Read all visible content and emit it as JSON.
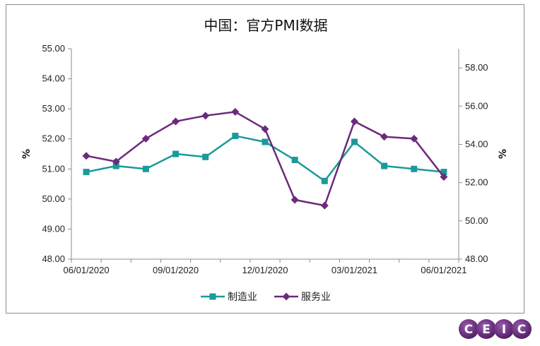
{
  "chart_data": {
    "type": "line",
    "title": "中国：官方PMI数据",
    "categories": [
      "06/01/2020",
      "07/01/2020",
      "08/01/2020",
      "09/01/2020",
      "10/01/2020",
      "11/01/2020",
      "12/01/2020",
      "01/01/2021",
      "02/01/2021",
      "03/01/2021",
      "04/01/2021",
      "05/01/2021",
      "06/01/2021"
    ],
    "x_tick_labels": [
      "06/01/2020",
      "09/01/2020",
      "12/01/2020",
      "03/01/2021",
      "06/01/2021"
    ],
    "ylabel_left": "%",
    "ylabel_right": "%",
    "ylim_left": [
      48,
      55
    ],
    "ylim_right": [
      48,
      59
    ],
    "y_ticks_left": [
      "48.00",
      "49.00",
      "50.00",
      "51.00",
      "52.00",
      "53.00",
      "54.00",
      "55.00"
    ],
    "y_ticks_right": [
      "48.00",
      "50.00",
      "52.00",
      "54.00",
      "56.00",
      "58.00"
    ],
    "grid": false,
    "legend_position": "bottom",
    "series": [
      {
        "name": "制造业",
        "axis": "left",
        "color": "#1a9a9a",
        "marker": "square",
        "values": [
          50.9,
          51.1,
          51.0,
          51.5,
          51.4,
          52.1,
          51.9,
          51.3,
          50.6,
          51.9,
          51.1,
          51.0,
          50.9
        ]
      },
      {
        "name": "服务业",
        "axis": "right",
        "color": "#6b2a7d",
        "marker": "diamond",
        "values": [
          53.4,
          53.1,
          54.3,
          55.2,
          55.5,
          55.7,
          54.8,
          51.1,
          50.8,
          55.2,
          54.4,
          54.3,
          52.3
        ]
      }
    ]
  },
  "logo": {
    "letters": [
      "C",
      "E",
      "I",
      "C"
    ]
  }
}
